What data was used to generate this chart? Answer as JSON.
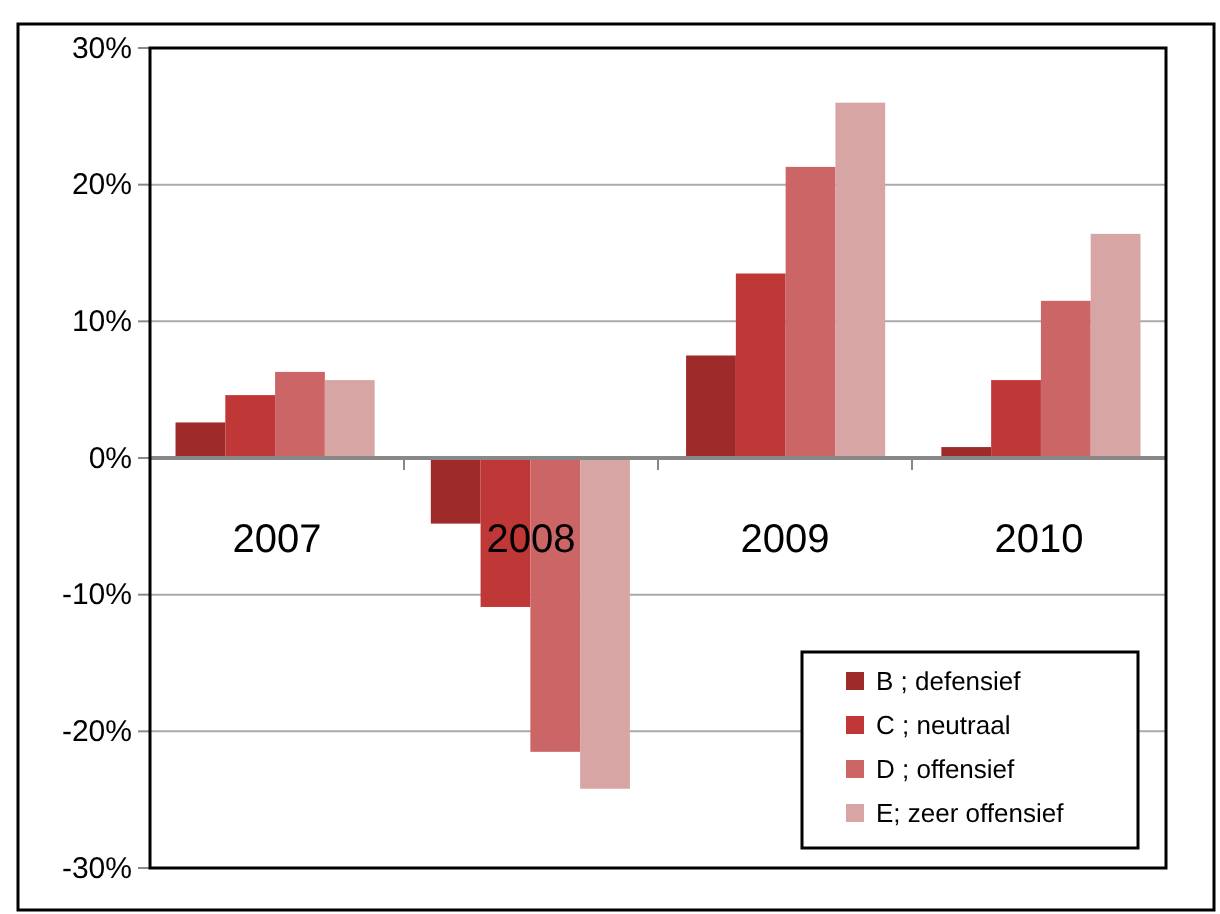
{
  "chart_data": {
    "type": "bar",
    "categories": [
      "2007",
      "2008",
      "2009",
      "2010"
    ],
    "series": [
      {
        "name": "B ; defensief",
        "color": "#9e2a2a",
        "values": [
          2.6,
          -4.8,
          7.5,
          0.8
        ]
      },
      {
        "name": "C ; neutraal",
        "color": "#c03737",
        "values": [
          4.6,
          -10.9,
          13.5,
          5.7
        ]
      },
      {
        "name": "D ; offensief",
        "color": "#cc6666",
        "values": [
          6.3,
          -21.5,
          21.3,
          11.5
        ]
      },
      {
        "name": "E; zeer offensief",
        "color": "#d8a5a5",
        "values": [
          5.7,
          -24.2,
          26.0,
          16.4
        ]
      }
    ],
    "ylim": [
      -30,
      30
    ],
    "yticks": [
      {
        "value": -30,
        "label": "-30%"
      },
      {
        "value": -20,
        "label": "-20%"
      },
      {
        "value": -10,
        "label": "-10%"
      },
      {
        "value": 0,
        "label": "0%"
      },
      {
        "value": 10,
        "label": "10%"
      },
      {
        "value": 20,
        "label": "20%"
      },
      {
        "value": 30,
        "label": "30%"
      }
    ],
    "grid": "y",
    "legend": "bottom right"
  }
}
